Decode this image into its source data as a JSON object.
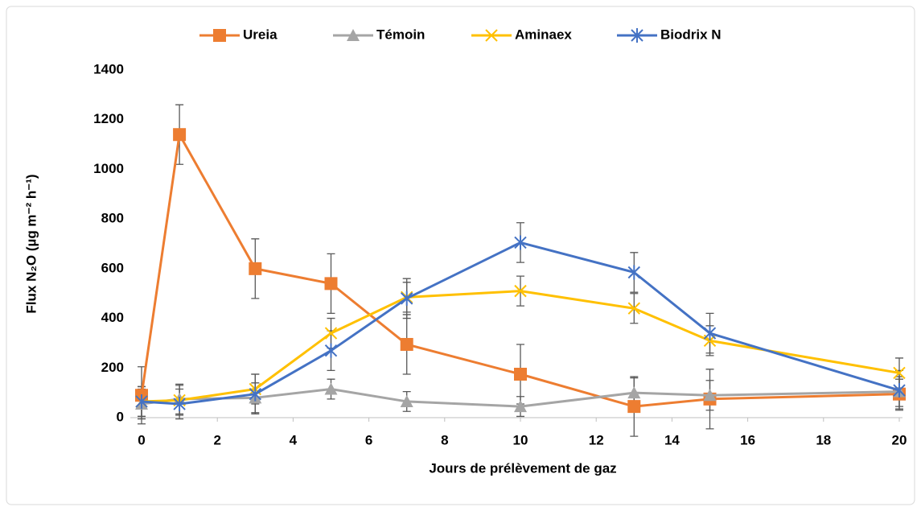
{
  "chart_data": {
    "type": "line",
    "x_label": "Jours de prélèvement de gaz",
    "y_label": "Flux N₂O (µg m⁻² h⁻¹)",
    "x": [
      0,
      1,
      3,
      5,
      7,
      10,
      13,
      15,
      20
    ],
    "series": [
      {
        "name": "Ureia",
        "color": "#ed7d31",
        "marker": "square",
        "values": [
          90,
          1140,
          600,
          540,
          295,
          175,
          45,
          75,
          95
        ],
        "errors": [
          115,
          120,
          120,
          120,
          120,
          120,
          120,
          120,
          60
        ]
      },
      {
        "name": "Témoin",
        "color": "#a5a5a5",
        "marker": "triangle",
        "values": [
          55,
          75,
          80,
          115,
          65,
          45,
          100,
          90,
          105
        ],
        "errors": [
          60,
          60,
          60,
          40,
          40,
          40,
          60,
          60,
          60
        ]
      },
      {
        "name": "Aminaex",
        "color": "#ffc000",
        "marker": "x",
        "values": [
          65,
          70,
          115,
          340,
          485,
          510,
          440,
          310,
          180
        ],
        "errors": [
          60,
          60,
          60,
          60,
          60,
          60,
          60,
          60,
          60
        ]
      },
      {
        "name": "Biodrix N",
        "color": "#4472c4",
        "marker": "asterisk",
        "values": [
          65,
          55,
          95,
          270,
          480,
          705,
          585,
          340,
          110
        ],
        "errors": [
          60,
          60,
          80,
          80,
          80,
          80,
          80,
          80,
          80
        ]
      }
    ],
    "xlim": [
      0,
      20
    ],
    "xticks": [
      0,
      2,
      4,
      6,
      8,
      10,
      12,
      14,
      16,
      18,
      20
    ],
    "ylim": [
      0,
      1400
    ],
    "yticks": [
      0,
      200,
      400,
      600,
      800,
      1000,
      1200,
      1400
    ],
    "grid": false,
    "legend": "top"
  }
}
